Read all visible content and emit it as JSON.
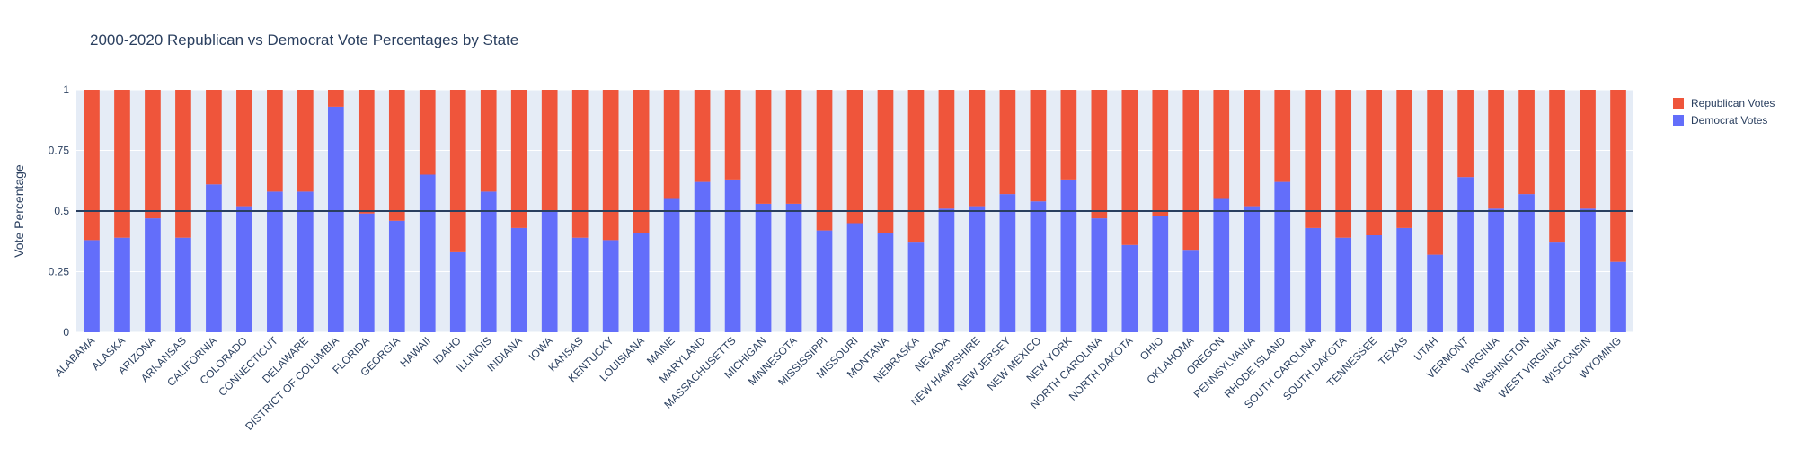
{
  "chart_data": {
    "type": "bar",
    "stacked": true,
    "title": "2000-2020 Republican vs Democrat Vote Percentages by State",
    "xlabel": "",
    "ylabel": "Vote Percentage",
    "ylim": [
      0,
      1
    ],
    "yticks": [
      "0",
      "0.25",
      "0.5",
      "0.75",
      "1"
    ],
    "reference_line": 0.5,
    "grid": true,
    "legend_position": "top-right",
    "categories": [
      "ALABAMA",
      "ALASKA",
      "ARIZONA",
      "ARKANSAS",
      "CALIFORNIA",
      "COLORADO",
      "CONNECTICUT",
      "DELAWARE",
      "DISTRICT OF COLUMBIA",
      "FLORIDA",
      "GEORGIA",
      "HAWAII",
      "IDAHO",
      "ILLINOIS",
      "INDIANA",
      "IOWA",
      "KANSAS",
      "KENTUCKY",
      "LOUISIANA",
      "MAINE",
      "MARYLAND",
      "MASSACHUSETTS",
      "MICHIGAN",
      "MINNESOTA",
      "MISSISSIPPI",
      "MISSOURI",
      "MONTANA",
      "NEBRASKA",
      "NEVADA",
      "NEW HAMPSHIRE",
      "NEW JERSEY",
      "NEW MEXICO",
      "NEW YORK",
      "NORTH CAROLINA",
      "NORTH DAKOTA",
      "OHIO",
      "OKLAHOMA",
      "OREGON",
      "PENNSYLVANIA",
      "RHODE ISLAND",
      "SOUTH CAROLINA",
      "SOUTH DAKOTA",
      "TENNESSEE",
      "TEXAS",
      "UTAH",
      "VERMONT",
      "VIRGINIA",
      "WASHINGTON",
      "WEST VIRGINIA",
      "WISCONSIN",
      "WYOMING"
    ],
    "series": [
      {
        "name": "Democrat Votes",
        "color": "#636efa",
        "values": [
          0.38,
          0.39,
          0.47,
          0.39,
          0.61,
          0.52,
          0.58,
          0.58,
          0.93,
          0.49,
          0.46,
          0.65,
          0.33,
          0.58,
          0.43,
          0.5,
          0.39,
          0.38,
          0.41,
          0.55,
          0.62,
          0.63,
          0.53,
          0.53,
          0.42,
          0.45,
          0.41,
          0.37,
          0.51,
          0.52,
          0.57,
          0.54,
          0.63,
          0.47,
          0.36,
          0.48,
          0.34,
          0.55,
          0.52,
          0.62,
          0.43,
          0.39,
          0.4,
          0.43,
          0.32,
          0.64,
          0.51,
          0.57,
          0.37,
          0.51,
          0.29
        ]
      },
      {
        "name": "Republican Votes",
        "color": "#ef553b",
        "values": [
          0.62,
          0.61,
          0.53,
          0.61,
          0.39,
          0.48,
          0.42,
          0.42,
          0.07,
          0.51,
          0.54,
          0.35,
          0.67,
          0.42,
          0.57,
          0.5,
          0.61,
          0.62,
          0.59,
          0.45,
          0.38,
          0.37,
          0.47,
          0.47,
          0.58,
          0.55,
          0.59,
          0.63,
          0.49,
          0.48,
          0.43,
          0.46,
          0.37,
          0.53,
          0.64,
          0.52,
          0.66,
          0.45,
          0.48,
          0.38,
          0.57,
          0.61,
          0.6,
          0.57,
          0.68,
          0.36,
          0.49,
          0.43,
          0.63,
          0.49,
          0.71
        ]
      }
    ],
    "legend_order": [
      "Republican Votes",
      "Democrat Votes"
    ]
  }
}
